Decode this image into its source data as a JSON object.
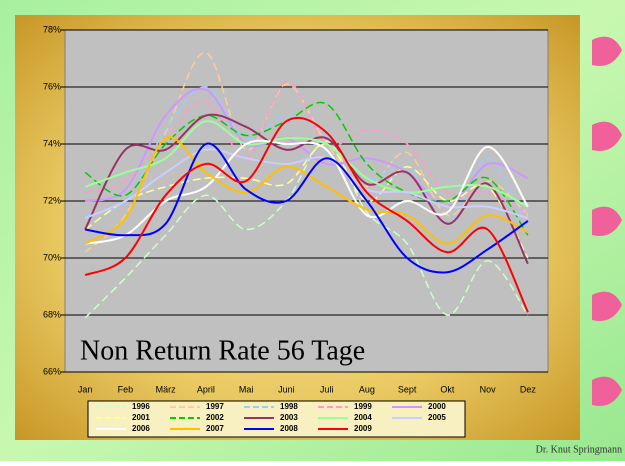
{
  "chart_data": {
    "type": "line",
    "annotation": "Non Return Rate 56 Tage",
    "author": "Dr. Knut Springmann",
    "categories": [
      "Jan",
      "Feb",
      "März",
      "April",
      "Mai",
      "Juni",
      "Juli",
      "Aug",
      "Sept",
      "Okt",
      "Nov",
      "Dez"
    ],
    "ylim": [
      66,
      78
    ],
    "yticks": [
      {
        "value": 66,
        "label": "66%"
      },
      {
        "value": 68,
        "label": "68%"
      },
      {
        "value": 70,
        "label": "70%"
      },
      {
        "value": 72,
        "label": "72%"
      },
      {
        "value": 74,
        "label": "74%"
      },
      {
        "value": 76,
        "label": "76%"
      },
      {
        "value": 78,
        "label": "78%"
      }
    ],
    "grid": true,
    "series": [
      {
        "name": "1996",
        "color": "#ccffcc",
        "dash": true,
        "values": [
          67.9,
          69.3,
          70.8,
          72.2,
          71.0,
          72.0,
          74.1,
          71.6,
          70.5,
          68.0,
          69.9,
          68.0
        ]
      },
      {
        "name": "1997",
        "color": "#ffcc99",
        "dash": true,
        "values": [
          70.2,
          71.5,
          74.4,
          77.2,
          73.8,
          76.1,
          74.0,
          72.5,
          73.7,
          71.5,
          72.7,
          71.5
        ]
      },
      {
        "name": "1998",
        "color": "#99ccff",
        "dash": true,
        "values": [
          71.5,
          72.0,
          74.5,
          76.0,
          74.2,
          75.0,
          74.3,
          72.8,
          73.2,
          71.2,
          73.5,
          71.0
        ]
      },
      {
        "name": "1999",
        "color": "#ff99cc",
        "dash": true,
        "values": [
          72.3,
          72.7,
          74.2,
          75.5,
          73.5,
          76.2,
          74.0,
          74.5,
          74.0,
          72.3,
          72.3,
          71.5
        ]
      },
      {
        "name": "2000",
        "color": "#cc99ff",
        "dash": false,
        "values": [
          72.0,
          72.4,
          75.0,
          75.9,
          74.0,
          74.2,
          73.3,
          73.5,
          73.0,
          71.8,
          73.3,
          72.8
        ]
      },
      {
        "name": "2001",
        "color": "#ffff99",
        "dash": true,
        "values": [
          71.0,
          72.0,
          72.5,
          72.8,
          72.8,
          72.6,
          74.0,
          72.0,
          73.2,
          72.0,
          72.5,
          70.0
        ]
      },
      {
        "name": "2002",
        "color": "#00cc00",
        "dash": true,
        "values": [
          73.0,
          72.2,
          74.0,
          75.0,
          74.3,
          74.8,
          75.4,
          73.3,
          72.3,
          72.0,
          72.8,
          70.8
        ]
      },
      {
        "name": "2003",
        "color": "#993366",
        "dash": false,
        "values": [
          71.0,
          73.8,
          73.8,
          75.0,
          74.6,
          73.8,
          74.2,
          72.6,
          73.0,
          71.2,
          72.6,
          69.8
        ]
      },
      {
        "name": "2004",
        "color": "#99ff99",
        "dash": false,
        "values": [
          72.5,
          73.0,
          73.5,
          74.8,
          74.0,
          74.2,
          74.0,
          72.8,
          72.3,
          72.5,
          72.5,
          71.8
        ]
      },
      {
        "name": "2005",
        "color": "#ccccff",
        "dash": false,
        "values": [
          71.4,
          72.0,
          73.0,
          73.8,
          73.5,
          73.3,
          73.5,
          72.4,
          72.3,
          71.8,
          71.8,
          71.4
        ]
      },
      {
        "name": "2006",
        "color": "#ffffff",
        "dash": false,
        "values": [
          70.5,
          70.8,
          72.0,
          72.5,
          74.0,
          74.0,
          73.8,
          71.5,
          72.0,
          71.6,
          73.9,
          71.8
        ]
      },
      {
        "name": "2007",
        "color": "#ffc000",
        "dash": false,
        "values": [
          70.5,
          71.4,
          74.2,
          73.0,
          72.3,
          73.2,
          72.5,
          71.7,
          71.5,
          70.5,
          71.5,
          70.9
        ]
      },
      {
        "name": "2008",
        "color": "#0000ff",
        "dash": false,
        "values": [
          71.0,
          70.8,
          71.2,
          74.0,
          72.4,
          72.0,
          73.5,
          72.0,
          70.0,
          69.5,
          70.3,
          71.3
        ]
      },
      {
        "name": "2009",
        "color": "#ff0000",
        "dash": false,
        "values": [
          69.4,
          70.0,
          72.2,
          73.3,
          72.7,
          74.8,
          74.4,
          72.3,
          71.3,
          70.2,
          71.0,
          68.1
        ]
      }
    ]
  }
}
